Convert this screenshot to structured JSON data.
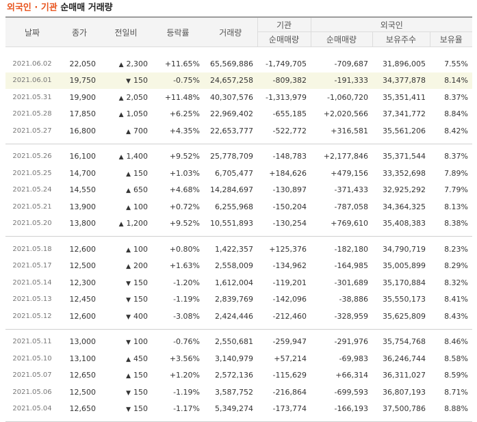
{
  "title": {
    "accent": "외국인 · 기관",
    "rest": " 순매매 거래량"
  },
  "headers": {
    "date": "날짜",
    "close": "종가",
    "change": "전일비",
    "rate": "등락률",
    "volume": "거래량",
    "inst_group": "기관",
    "inst_net": "순매매량",
    "foreign_group": "외국인",
    "foreign_net": "순매매량",
    "foreign_hold": "보유주수",
    "foreign_ratio": "보유율"
  },
  "colors": {
    "up": "#cc1a1a",
    "down": "#1b5fc6",
    "accent": "#e8541e"
  },
  "icons": {
    "up": "up-triangle-icon",
    "down": "down-triangle-icon"
  },
  "groups": [
    [
      {
        "date": "2021.06.02",
        "close": "22,050",
        "dir": "up",
        "change": "2,300",
        "rate": "+11.65%",
        "volume": "65,569,886",
        "inst": "-1,749,705",
        "foreign": "-709,687",
        "hold": "31,896,005",
        "ratio": "7.55%"
      },
      {
        "date": "2021.06.01",
        "close": "19,750",
        "dir": "down",
        "change": "150",
        "rate": "-0.75%",
        "volume": "24,657,258",
        "inst": "-809,382",
        "foreign": "-191,333",
        "hold": "34,377,878",
        "ratio": "8.14%",
        "highlight": true
      },
      {
        "date": "2021.05.31",
        "close": "19,900",
        "dir": "up",
        "change": "2,050",
        "rate": "+11.48%",
        "volume": "40,307,576",
        "inst": "-1,313,979",
        "foreign": "-1,060,720",
        "hold": "35,351,411",
        "ratio": "8.37%"
      },
      {
        "date": "2021.05.28",
        "close": "17,850",
        "dir": "up",
        "change": "1,050",
        "rate": "+6.25%",
        "volume": "22,969,402",
        "inst": "-655,185",
        "foreign": "+2,020,566",
        "hold": "37,341,772",
        "ratio": "8.84%"
      },
      {
        "date": "2021.05.27",
        "close": "16,800",
        "dir": "up",
        "change": "700",
        "rate": "+4.35%",
        "volume": "22,653,777",
        "inst": "-522,772",
        "foreign": "+316,581",
        "hold": "35,561,206",
        "ratio": "8.42%"
      }
    ],
    [
      {
        "date": "2021.05.26",
        "close": "16,100",
        "dir": "up",
        "change": "1,400",
        "rate": "+9.52%",
        "volume": "25,778,709",
        "inst": "-148,783",
        "foreign": "+2,177,846",
        "hold": "35,371,544",
        "ratio": "8.37%"
      },
      {
        "date": "2021.05.25",
        "close": "14,700",
        "dir": "up",
        "change": "150",
        "rate": "+1.03%",
        "volume": "6,705,477",
        "inst": "+184,626",
        "foreign": "+479,156",
        "hold": "33,352,698",
        "ratio": "7.89%"
      },
      {
        "date": "2021.05.24",
        "close": "14,550",
        "dir": "up",
        "change": "650",
        "rate": "+4.68%",
        "volume": "14,284,697",
        "inst": "-130,897",
        "foreign": "-371,433",
        "hold": "32,925,292",
        "ratio": "7.79%"
      },
      {
        "date": "2021.05.21",
        "close": "13,900",
        "dir": "up",
        "change": "100",
        "rate": "+0.72%",
        "volume": "6,255,968",
        "inst": "-150,204",
        "foreign": "-787,058",
        "hold": "34,364,325",
        "ratio": "8.13%"
      },
      {
        "date": "2021.05.20",
        "close": "13,800",
        "dir": "up",
        "change": "1,200",
        "rate": "+9.52%",
        "volume": "10,551,893",
        "inst": "-130,254",
        "foreign": "+769,610",
        "hold": "35,408,383",
        "ratio": "8.38%"
      }
    ],
    [
      {
        "date": "2021.05.18",
        "close": "12,600",
        "dir": "up",
        "change": "100",
        "rate": "+0.80%",
        "volume": "1,422,357",
        "inst": "+125,376",
        "foreign": "-182,180",
        "hold": "34,790,719",
        "ratio": "8.23%"
      },
      {
        "date": "2021.05.17",
        "close": "12,500",
        "dir": "up",
        "change": "200",
        "rate": "+1.63%",
        "volume": "2,558,009",
        "inst": "-134,962",
        "foreign": "-164,985",
        "hold": "35,005,899",
        "ratio": "8.29%"
      },
      {
        "date": "2021.05.14",
        "close": "12,300",
        "dir": "down",
        "change": "150",
        "rate": "-1.20%",
        "volume": "1,612,004",
        "inst": "-119,201",
        "foreign": "-301,689",
        "hold": "35,170,884",
        "ratio": "8.32%"
      },
      {
        "date": "2021.05.13",
        "close": "12,450",
        "dir": "down",
        "change": "150",
        "rate": "-1.19%",
        "volume": "2,839,769",
        "inst": "-142,096",
        "foreign": "-38,886",
        "hold": "35,550,173",
        "ratio": "8.41%"
      },
      {
        "date": "2021.05.12",
        "close": "12,600",
        "dir": "down",
        "change": "400",
        "rate": "-3.08%",
        "volume": "2,424,446",
        "inst": "-212,460",
        "foreign": "-328,959",
        "hold": "35,625,809",
        "ratio": "8.43%"
      }
    ],
    [
      {
        "date": "2021.05.11",
        "close": "13,000",
        "dir": "down",
        "change": "100",
        "rate": "-0.76%",
        "volume": "2,550,681",
        "inst": "-259,947",
        "foreign": "-291,976",
        "hold": "35,754,768",
        "ratio": "8.46%"
      },
      {
        "date": "2021.05.10",
        "close": "13,100",
        "dir": "up",
        "change": "450",
        "rate": "+3.56%",
        "volume": "3,140,979",
        "inst": "+57,214",
        "foreign": "-69,983",
        "hold": "36,246,744",
        "ratio": "8.58%"
      },
      {
        "date": "2021.05.07",
        "close": "12,650",
        "dir": "up",
        "change": "150",
        "rate": "+1.20%",
        "volume": "2,572,136",
        "inst": "-115,629",
        "foreign": "+66,314",
        "hold": "36,311,027",
        "ratio": "8.59%"
      },
      {
        "date": "2021.05.06",
        "close": "12,500",
        "dir": "down",
        "change": "150",
        "rate": "-1.19%",
        "volume": "3,587,752",
        "inst": "-216,864",
        "foreign": "-699,593",
        "hold": "36,807,193",
        "ratio": "8.71%"
      },
      {
        "date": "2021.05.04",
        "close": "12,650",
        "dir": "down",
        "change": "150",
        "rate": "-1.17%",
        "volume": "5,349,274",
        "inst": "-173,774",
        "foreign": "-166,193",
        "hold": "37,500,786",
        "ratio": "8.88%"
      }
    ]
  ]
}
